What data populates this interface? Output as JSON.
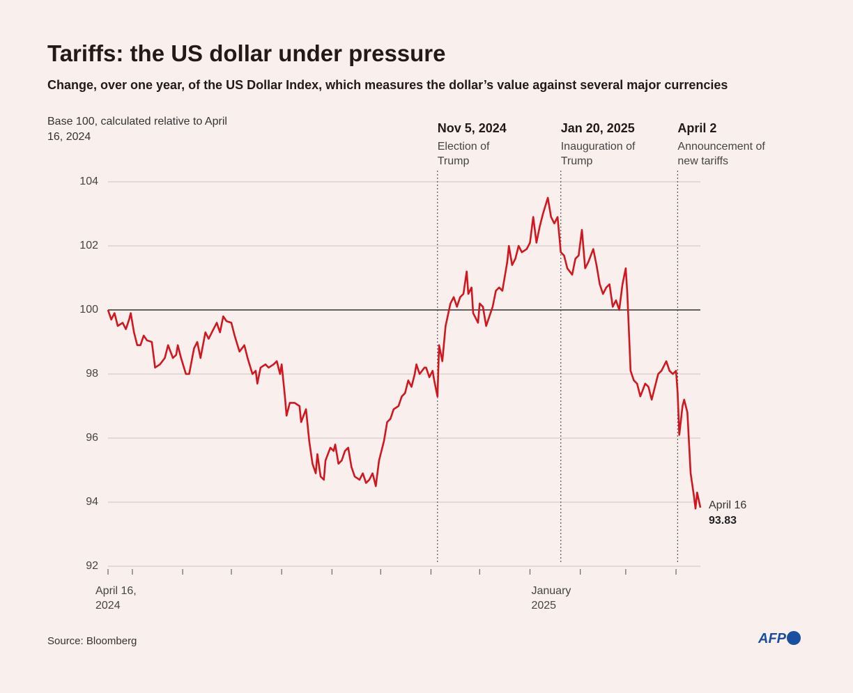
{
  "chart_data": {
    "type": "line",
    "title": "Tariffs: the US dollar under pressure",
    "subtitle": "Change, over one year, of the US Dollar Index, which measures the dollar’s value against several major currencies",
    "y_axis_label": "Base 100, calculated relative to April 16, 2024",
    "source": "Source: Bloomberg",
    "logo": "AFP",
    "end_label": "April 16",
    "baseline": 100,
    "grid": true,
    "ylim": [
      92,
      104
    ],
    "yticks": [
      92,
      94,
      96,
      98,
      100,
      102,
      104
    ],
    "xlim": [
      "2024-04-16",
      "2025-04-16"
    ],
    "xticks": [
      {
        "value": "2024-04-16",
        "label": "April 16, 2024"
      },
      {
        "value": "2025-01-01",
        "label": "January 2025"
      }
    ],
    "x_minor_ticks": [
      "2024-05-01",
      "2024-06-01",
      "2024-07-01",
      "2024-08-01",
      "2024-09-01",
      "2024-10-01",
      "2024-11-01",
      "2024-12-01",
      "2025-02-01",
      "2025-03-01",
      "2025-04-01"
    ],
    "events": [
      {
        "x": "2024-11-05",
        "label": "Nov 5, 2024",
        "text": "Election of Trump"
      },
      {
        "x": "2025-01-20",
        "label": "Jan 20, 2025",
        "text": "Inauguration of Trump"
      },
      {
        "x": "2025-04-02",
        "label": "April 2",
        "text": "Announcement of new tariffs"
      }
    ],
    "x": [
      "2024-04-16",
      "2024-04-18",
      "2024-04-20",
      "2024-04-22",
      "2024-04-25",
      "2024-04-27",
      "2024-04-29",
      "2024-04-30",
      "2024-05-02",
      "2024-05-04",
      "2024-05-06",
      "2024-05-08",
      "2024-05-10",
      "2024-05-13",
      "2024-05-15",
      "2024-05-18",
      "2024-05-21",
      "2024-05-23",
      "2024-05-26",
      "2024-05-28",
      "2024-05-29",
      "2024-05-31",
      "2024-06-03",
      "2024-06-05",
      "2024-06-08",
      "2024-06-10",
      "2024-06-12",
      "2024-06-15",
      "2024-06-17",
      "2024-06-20",
      "2024-06-22",
      "2024-06-24",
      "2024-06-26",
      "2024-06-28",
      "2024-07-01",
      "2024-07-03",
      "2024-07-06",
      "2024-07-09",
      "2024-07-11",
      "2024-07-14",
      "2024-07-16",
      "2024-07-17",
      "2024-07-19",
      "2024-07-22",
      "2024-07-24",
      "2024-07-27",
      "2024-07-29",
      "2024-07-31",
      "2024-08-01",
      "2024-08-03",
      "2024-08-04",
      "2024-08-06",
      "2024-08-09",
      "2024-08-12",
      "2024-08-13",
      "2024-08-16",
      "2024-08-18",
      "2024-08-20",
      "2024-08-22",
      "2024-08-23",
      "2024-08-25",
      "2024-08-27",
      "2024-08-28",
      "2024-08-31",
      "2024-09-02",
      "2024-09-03",
      "2024-09-05",
      "2024-09-07",
      "2024-09-09",
      "2024-09-11",
      "2024-09-13",
      "2024-09-15",
      "2024-09-18",
      "2024-09-20",
      "2024-09-22",
      "2024-09-24",
      "2024-09-26",
      "2024-09-28",
      "2024-09-30",
      "2024-10-03",
      "2024-10-05",
      "2024-10-07",
      "2024-10-09",
      "2024-10-12",
      "2024-10-14",
      "2024-10-16",
      "2024-10-18",
      "2024-10-20",
      "2024-10-22",
      "2024-10-23",
      "2024-10-25",
      "2024-10-28",
      "2024-10-29",
      "2024-10-31",
      "2024-11-02",
      "2024-11-03",
      "2024-11-05",
      "2024-11-06",
      "2024-11-08",
      "2024-11-10",
      "2024-11-13",
      "2024-11-15",
      "2024-11-17",
      "2024-11-19",
      "2024-11-21",
      "2024-11-23",
      "2024-11-24",
      "2024-11-26",
      "2024-11-27",
      "2024-11-30",
      "2024-12-01",
      "2024-12-03",
      "2024-12-05",
      "2024-12-07",
      "2024-12-09",
      "2024-12-11",
      "2024-12-13",
      "2024-12-15",
      "2024-12-18",
      "2024-12-19",
      "2024-12-21",
      "2024-12-23",
      "2024-12-25",
      "2024-12-27",
      "2024-12-30",
      "2025-01-01",
      "2025-01-03",
      "2025-01-05",
      "2025-01-07",
      "2025-01-09",
      "2025-01-12",
      "2025-01-14",
      "2025-01-16",
      "2025-01-18",
      "2025-01-20",
      "2025-01-22",
      "2025-01-24",
      "2025-01-27",
      "2025-01-29",
      "2025-01-31",
      "2025-02-02",
      "2025-02-04",
      "2025-02-06",
      "2025-02-09",
      "2025-02-11",
      "2025-02-13",
      "2025-02-15",
      "2025-02-17",
      "2025-02-19",
      "2025-02-21",
      "2025-02-23",
      "2025-02-25",
      "2025-02-27",
      "2025-03-01",
      "2025-03-02",
      "2025-03-04",
      "2025-03-06",
      "2025-03-08",
      "2025-03-10",
      "2025-03-13",
      "2025-03-15",
      "2025-03-17",
      "2025-03-19",
      "2025-03-21",
      "2025-03-23",
      "2025-03-26",
      "2025-03-28",
      "2025-03-30",
      "2025-04-01",
      "2025-04-02",
      "2025-04-03",
      "2025-04-05",
      "2025-04-06",
      "2025-04-08",
      "2025-04-10",
      "2025-04-12",
      "2025-04-13",
      "2025-04-14",
      "2025-04-16"
    ],
    "series": [
      {
        "color": "#d0161e",
        "values": [
          100.0,
          99.7,
          99.9,
          99.5,
          99.6,
          99.4,
          99.7,
          99.9,
          99.3,
          98.9,
          98.9,
          99.2,
          99.05,
          99.0,
          98.2,
          98.3,
          98.5,
          98.9,
          98.5,
          98.6,
          98.9,
          98.5,
          98.0,
          98.0,
          98.8,
          99.0,
          98.5,
          99.3,
          99.1,
          99.4,
          99.6,
          99.3,
          99.8,
          99.65,
          99.6,
          99.2,
          98.7,
          98.9,
          98.5,
          98.0,
          98.1,
          97.7,
          98.2,
          98.3,
          98.2,
          98.3,
          98.4,
          98.0,
          98.3,
          97.3,
          96.7,
          97.1,
          97.1,
          97.0,
          96.5,
          96.9,
          95.9,
          95.2,
          94.9,
          95.5,
          94.8,
          94.7,
          95.3,
          95.7,
          95.6,
          95.8,
          95.2,
          95.3,
          95.6,
          95.7,
          95.1,
          94.8,
          94.7,
          94.9,
          94.6,
          94.7,
          94.9,
          94.5,
          95.3,
          95.9,
          96.5,
          96.6,
          96.9,
          97.0,
          97.3,
          97.4,
          97.8,
          97.6,
          98.0,
          98.3,
          98.0,
          98.2,
          98.2,
          97.9,
          98.1,
          97.8,
          97.3,
          98.9,
          98.4,
          99.5,
          100.2,
          100.4,
          100.1,
          100.4,
          100.5,
          101.2,
          100.5,
          100.7,
          99.9,
          99.6,
          100.2,
          100.1,
          99.5,
          99.8,
          100.1,
          100.6,
          100.7,
          100.6,
          101.5,
          102.0,
          101.4,
          101.6,
          102.0,
          101.8,
          101.9,
          102.1,
          102.9,
          102.1,
          102.6,
          103.0,
          103.5,
          102.9,
          102.7,
          102.9,
          101.8,
          101.7,
          101.3,
          101.1,
          101.6,
          101.7,
          102.5,
          101.3,
          101.5,
          101.9,
          101.4,
          100.8,
          100.5,
          100.7,
          100.8,
          100.1,
          100.3,
          100.0,
          100.8,
          101.3,
          100.5,
          98.1,
          97.8,
          97.7,
          97.3,
          97.7,
          97.6,
          97.2,
          97.6,
          98.0,
          98.1,
          98.4,
          98.1,
          98.0,
          98.1,
          97.4,
          96.1,
          97.0,
          97.2,
          96.8,
          94.9,
          94.2,
          93.8,
          94.3,
          93.83
        ]
      }
    ]
  }
}
